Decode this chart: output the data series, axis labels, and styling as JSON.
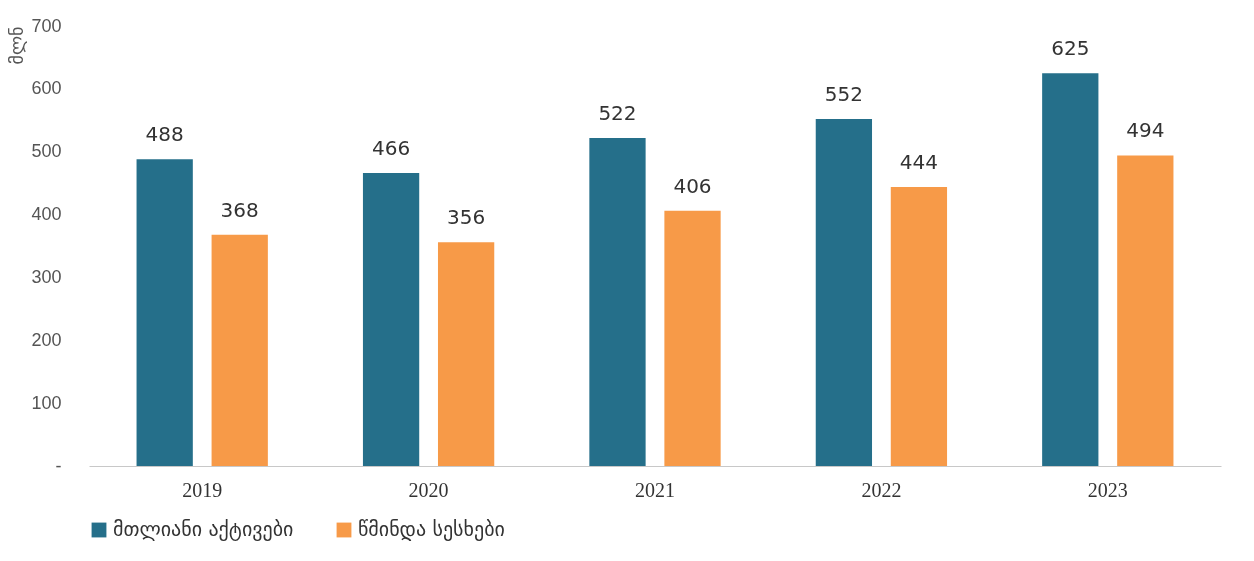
{
  "chart_data": {
    "type": "bar",
    "ylabel": "მლნ",
    "categories": [
      "2019",
      "2020",
      "2021",
      "2022",
      "2023"
    ],
    "series": [
      {
        "name": "მთლიანი აქტივები",
        "color": "#256f8a",
        "values": [
          488,
          466,
          522,
          552,
          625
        ]
      },
      {
        "name": "წმინდა სესხები",
        "color": "#f79a48",
        "values": [
          368,
          356,
          406,
          444,
          494
        ]
      }
    ],
    "ylim": [
      0,
      700
    ],
    "yticks": [
      {
        "value": 0,
        "label": "-"
      },
      100,
      200,
      300,
      400,
      500,
      600,
      700
    ],
    "data_labels": true,
    "grid": false,
    "legend": "bottom"
  }
}
